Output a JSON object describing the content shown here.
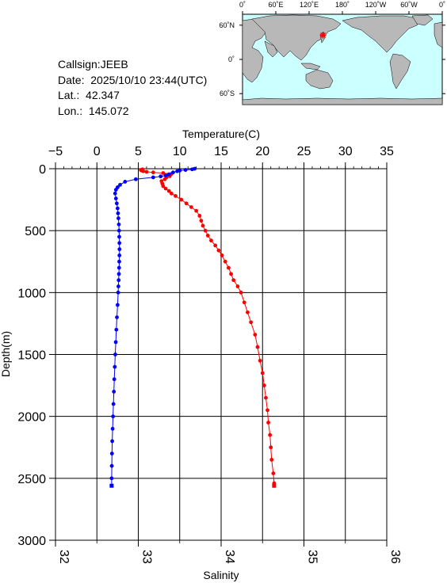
{
  "station": {
    "callsign_label": "Callsign:",
    "callsign": "JEEB",
    "date_label": "Date:",
    "date": "2025/10/10 23:44(UTC)",
    "lat_label": "Lat.:",
    "lat": "42.347",
    "lon_label": "Lon.:",
    "lon": "145.072"
  },
  "map": {
    "lon_labels": [
      "0˚",
      "60˚E",
      "120˚E",
      "180˚",
      "120˚W",
      "60˚W",
      "0˚"
    ],
    "lat_labels": [
      "60˚N",
      "0˚",
      "60˚S"
    ],
    "ocean_color": "#ccffff",
    "land_color": "#b8b8b8",
    "marker_color": "#ff0000",
    "marker": {
      "lat": 42.347,
      "lon": 145.072
    }
  },
  "chart_data": {
    "type": "scatter",
    "temperature_axis": {
      "label": "Temperature(C)",
      "range": [
        -5,
        35
      ],
      "ticks": [
        -5,
        0,
        5,
        10,
        15,
        20,
        25,
        30,
        35
      ]
    },
    "salinity_axis": {
      "label": "Salinity",
      "range": [
        32,
        36
      ],
      "ticks": [
        32,
        33,
        34,
        35,
        36
      ]
    },
    "depth_axis": {
      "label": "Depth(m)",
      "range": [
        0,
        3000
      ],
      "ticks": [
        0,
        500,
        1000,
        1500,
        2000,
        2500,
        3000
      ],
      "inverted": true
    },
    "grid": true,
    "series": [
      {
        "color": "#ff0000",
        "axis": "salinity",
        "points": [
          [
            33.05,
            5
          ],
          [
            33.03,
            10
          ],
          [
            33.04,
            15
          ],
          [
            33.06,
            20
          ],
          [
            33.1,
            25
          ],
          [
            33.18,
            30
          ],
          [
            33.3,
            35
          ],
          [
            33.4,
            42
          ],
          [
            33.36,
            50
          ],
          [
            33.38,
            60
          ],
          [
            33.34,
            70
          ],
          [
            33.32,
            85
          ],
          [
            33.28,
            100
          ],
          [
            33.29,
            120
          ],
          [
            33.3,
            140
          ],
          [
            33.33,
            160
          ],
          [
            33.37,
            180
          ],
          [
            33.4,
            200
          ],
          [
            33.45,
            220
          ],
          [
            33.52,
            250
          ],
          [
            33.58,
            280
          ],
          [
            33.64,
            310
          ],
          [
            33.7,
            340
          ],
          [
            33.74,
            380
          ],
          [
            33.76,
            420
          ],
          [
            33.78,
            460
          ],
          [
            33.81,
            500
          ],
          [
            33.84,
            540
          ],
          [
            33.88,
            580
          ],
          [
            33.93,
            620
          ],
          [
            33.97,
            660
          ],
          [
            34.01,
            700
          ],
          [
            34.05,
            750
          ],
          [
            34.09,
            800
          ],
          [
            34.12,
            850
          ],
          [
            34.15,
            900
          ],
          [
            34.2,
            950
          ],
          [
            34.24,
            1000
          ],
          [
            34.28,
            1080
          ],
          [
            34.32,
            1160
          ],
          [
            34.36,
            1240
          ],
          [
            34.41,
            1340
          ],
          [
            34.44,
            1440
          ],
          [
            34.47,
            1550
          ],
          [
            34.5,
            1650
          ],
          [
            34.52,
            1750
          ],
          [
            34.54,
            1850
          ],
          [
            34.56,
            1950
          ],
          [
            34.57,
            2050
          ],
          [
            34.59,
            2150
          ],
          [
            34.6,
            2250
          ],
          [
            34.61,
            2350
          ],
          [
            34.63,
            2460
          ],
          [
            34.64,
            2540
          ],
          [
            34.64,
            2560
          ]
        ]
      },
      {
        "color": "#0000ff",
        "axis": "temperature",
        "points": [
          [
            11.8,
            0
          ],
          [
            11.5,
            5
          ],
          [
            10.7,
            10
          ],
          [
            10,
            15
          ],
          [
            9.7,
            20
          ],
          [
            9.2,
            30
          ],
          [
            8.7,
            45
          ],
          [
            8.3,
            55
          ],
          [
            7.7,
            62
          ],
          [
            6.8,
            70
          ],
          [
            4.7,
            85
          ],
          [
            3.4,
            105
          ],
          [
            2.8,
            130
          ],
          [
            2.5,
            150
          ],
          [
            2.3,
            170
          ],
          [
            2.2,
            200
          ],
          [
            2.3,
            240
          ],
          [
            2.4,
            280
          ],
          [
            2.5,
            320
          ],
          [
            2.55,
            360
          ],
          [
            2.6,
            400
          ],
          [
            2.65,
            450
          ],
          [
            2.68,
            500
          ],
          [
            2.7,
            550
          ],
          [
            2.72,
            600
          ],
          [
            2.73,
            650
          ],
          [
            2.72,
            700
          ],
          [
            2.7,
            750
          ],
          [
            2.68,
            800
          ],
          [
            2.66,
            850
          ],
          [
            2.63,
            900
          ],
          [
            2.6,
            950
          ],
          [
            2.57,
            1000
          ],
          [
            2.5,
            1100
          ],
          [
            2.42,
            1200
          ],
          [
            2.35,
            1300
          ],
          [
            2.28,
            1400
          ],
          [
            2.22,
            1500
          ],
          [
            2.16,
            1600
          ],
          [
            2.1,
            1700
          ],
          [
            2.05,
            1800
          ],
          [
            2,
            1900
          ],
          [
            1.95,
            2000
          ],
          [
            1.9,
            2100
          ],
          [
            1.85,
            2200
          ],
          [
            1.82,
            2300
          ],
          [
            1.8,
            2400
          ],
          [
            1.78,
            2500
          ],
          [
            1.78,
            2560
          ]
        ]
      }
    ]
  }
}
